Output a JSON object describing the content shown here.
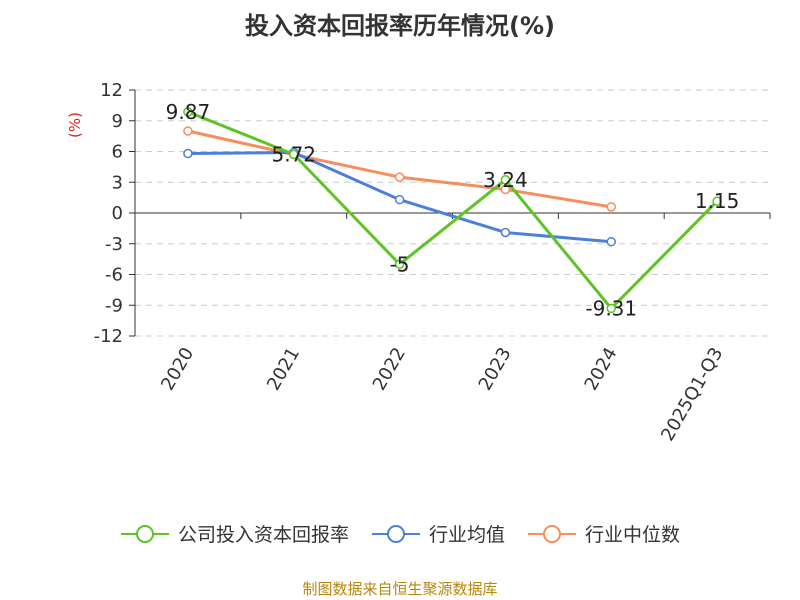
{
  "chart_data": {
    "type": "line",
    "title": "投入资本回报率历年情况(%)",
    "ylabel": "(%)",
    "ylim": [
      -12,
      12
    ],
    "yticks": [
      12,
      9,
      6,
      3,
      0,
      -3,
      -6,
      -9,
      -12
    ],
    "categories": [
      "2020",
      "2021",
      "2022",
      "2023",
      "2024",
      "2025Q1-Q3"
    ],
    "grid": true,
    "legend_position": "bottom",
    "series": [
      {
        "name": "公司投入资本回报率",
        "color": "#5cc424",
        "values": [
          9.87,
          5.72,
          -5,
          3.24,
          -9.31,
          1.15
        ],
        "data_labels": [
          "9.87",
          "5.72",
          "-5",
          "3.24",
          "-9.31",
          "1.15"
        ]
      },
      {
        "name": "行业均值",
        "color": "#4c7fdb",
        "values": [
          5.8,
          5.9,
          1.3,
          -1.9,
          -2.8,
          null
        ]
      },
      {
        "name": "行业中位数",
        "color": "#f98d5b",
        "values": [
          8.0,
          5.7,
          3.5,
          2.3,
          0.6,
          null
        ]
      }
    ]
  },
  "source": "制图数据来自恒生聚源数据库"
}
